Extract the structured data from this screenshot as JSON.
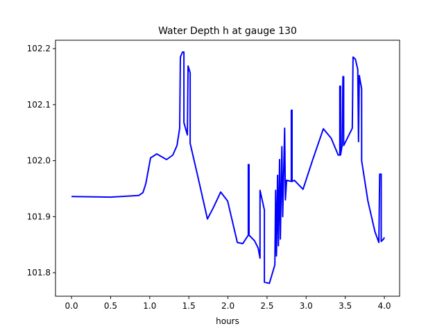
{
  "chart_data": {
    "type": "line",
    "title": "Water Depth h at gauge 130",
    "xlabel": "hours",
    "ylabel": "",
    "xlim": [
      -0.205,
      4.195
    ],
    "ylim": [
      101.758,
      102.215
    ],
    "xticks": [
      0.0,
      0.5,
      1.0,
      1.5,
      2.0,
      2.5,
      3.0,
      3.5,
      4.0
    ],
    "xtick_labels": [
      "0.0",
      "0.5",
      "1.0",
      "1.5",
      "2.0",
      "2.5",
      "3.0",
      "3.5",
      "4.0"
    ],
    "yticks": [
      101.8,
      101.9,
      102.0,
      102.1,
      102.2
    ],
    "ytick_labels": [
      "101.8",
      "101.9",
      "102.0",
      "102.1",
      "102.2"
    ],
    "grid": false,
    "series": [
      {
        "name": "h",
        "color": "#0000ff",
        "points": [
          [
            0.0,
            101.936
          ],
          [
            0.5,
            101.935
          ],
          [
            0.86,
            101.938
          ],
          [
            0.914,
            101.943
          ],
          [
            0.95,
            101.959
          ],
          [
            1.01,
            102.005
          ],
          [
            1.09,
            102.012
          ],
          [
            1.215,
            102.002
          ],
          [
            1.295,
            102.01
          ],
          [
            1.348,
            102.027
          ],
          [
            1.383,
            102.058
          ],
          [
            1.392,
            102.185
          ],
          [
            1.419,
            102.194
          ],
          [
            1.437,
            102.194
          ],
          [
            1.437,
            102.068
          ],
          [
            1.481,
            102.046
          ],
          [
            1.49,
            102.169
          ],
          [
            1.517,
            102.157
          ],
          [
            1.517,
            102.031
          ],
          [
            1.614,
            101.972
          ],
          [
            1.738,
            101.896
          ],
          [
            1.81,
            101.915
          ],
          [
            1.907,
            101.944
          ],
          [
            1.996,
            101.928
          ],
          [
            2.12,
            101.854
          ],
          [
            2.19,
            101.852
          ],
          [
            2.26,
            101.867
          ],
          [
            2.26,
            101.993
          ],
          [
            2.27,
            101.993
          ],
          [
            2.27,
            101.867
          ],
          [
            2.34,
            101.857
          ],
          [
            2.386,
            101.844
          ],
          [
            2.41,
            101.826
          ],
          [
            2.41,
            101.947
          ],
          [
            2.466,
            101.912
          ],
          [
            2.466,
            101.783
          ],
          [
            2.53,
            101.781
          ],
          [
            2.6,
            101.814
          ],
          [
            2.61,
            101.947
          ],
          [
            2.62,
            101.83
          ],
          [
            2.635,
            101.974
          ],
          [
            2.645,
            101.848
          ],
          [
            2.66,
            102.002
          ],
          [
            2.67,
            101.86
          ],
          [
            2.69,
            102.025
          ],
          [
            2.7,
            101.9
          ],
          [
            2.725,
            102.058
          ],
          [
            2.735,
            101.93
          ],
          [
            2.75,
            101.965
          ],
          [
            2.81,
            101.963
          ],
          [
            2.81,
            102.09
          ],
          [
            2.82,
            102.09
          ],
          [
            2.82,
            101.963
          ],
          [
            2.85,
            101.965
          ],
          [
            2.96,
            101.949
          ],
          [
            3.08,
            102.0
          ],
          [
            3.22,
            102.057
          ],
          [
            3.32,
            102.04
          ],
          [
            3.41,
            102.01
          ],
          [
            3.43,
            102.01
          ],
          [
            3.43,
            102.133
          ],
          [
            3.44,
            102.133
          ],
          [
            3.44,
            102.01
          ],
          [
            3.46,
            102.027
          ],
          [
            3.47,
            102.15
          ],
          [
            3.48,
            102.15
          ],
          [
            3.48,
            102.027
          ],
          [
            3.59,
            102.058
          ],
          [
            3.6,
            102.185
          ],
          [
            3.63,
            102.181
          ],
          [
            3.66,
            102.163
          ],
          [
            3.67,
            102.034
          ],
          [
            3.68,
            102.152
          ],
          [
            3.71,
            102.128
          ],
          [
            3.71,
            102.0
          ],
          [
            3.79,
            101.928
          ],
          [
            3.88,
            101.873
          ],
          [
            3.93,
            101.854
          ],
          [
            3.94,
            101.976
          ],
          [
            3.96,
            101.976
          ],
          [
            3.96,
            101.856
          ],
          [
            3.99,
            101.86
          ],
          [
            4.0,
            101.863
          ]
        ]
      }
    ]
  }
}
